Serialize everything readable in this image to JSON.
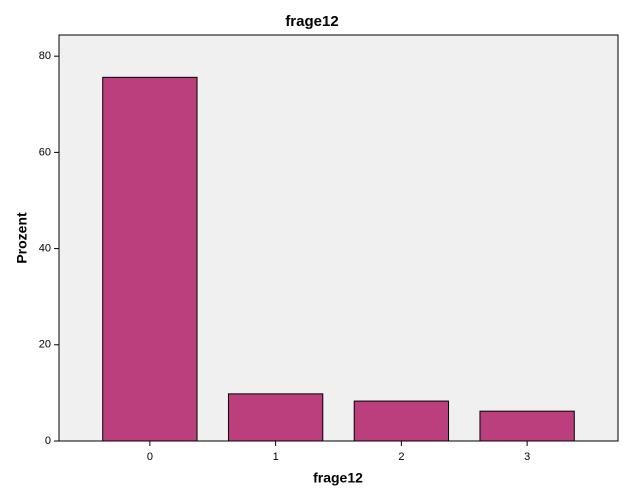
{
  "chart_data": {
    "type": "bar",
    "title": "frage12",
    "x_label": "frage12",
    "y_label": "Prozent",
    "categories": [
      "0",
      "1",
      "2",
      "3"
    ],
    "values": [
      75.6,
      9.8,
      8.3,
      6.2
    ],
    "color": "#bc3f7d",
    "ylim": [
      0,
      84.4
    ],
    "yticks": [
      0,
      20,
      40,
      60,
      80
    ],
    "grid": false
  }
}
